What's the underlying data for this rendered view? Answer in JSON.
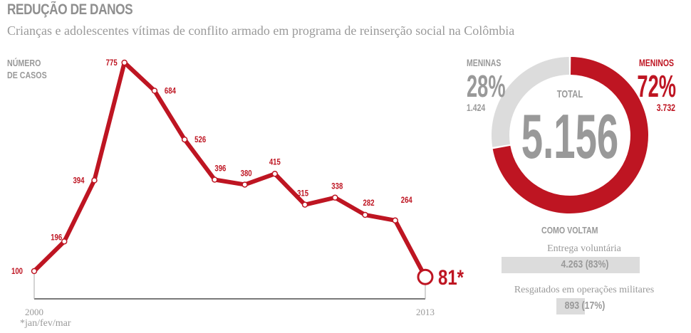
{
  "header": {
    "title": "REDUÇÃO DE DANOS",
    "subtitle": "Crianças e adolescentes vítimas de conflito armado em programa de reinserção social na Colômbia"
  },
  "footnote": "*jan/fev/mar",
  "colors": {
    "accent": "#be1522",
    "gray": "#999999",
    "light_gray": "#dcdcdc",
    "axis": "#7a7a7a"
  },
  "chart_data": [
    {
      "type": "line",
      "title": "",
      "ylabel": "NÚMERO DE CASOS",
      "xlabel": "",
      "x": [
        2000,
        2001,
        2002,
        2003,
        2004,
        2005,
        2006,
        2007,
        2008,
        2009,
        2010,
        2011,
        2012,
        2013
      ],
      "values": [
        100,
        196,
        394,
        775,
        684,
        526,
        396,
        380,
        415,
        315,
        338,
        282,
        264,
        81
      ],
      "data_labels": [
        "100",
        "196",
        "394",
        "775",
        "684",
        "526",
        "396",
        "380",
        "415",
        "315",
        "338",
        "282",
        "264",
        "81*"
      ],
      "x_tick_labels": [
        "2000",
        "2013"
      ],
      "ylim": [
        0,
        775
      ],
      "grid": false,
      "note": "*jan/fev/mar"
    },
    {
      "type": "pie",
      "title": "TOTAL",
      "total_label": "5.156",
      "total": 5156,
      "slices": [
        {
          "name": "MENINOS",
          "value": 3732,
          "value_label": "3.732",
          "percent_label": "72%",
          "percent": 72,
          "color": "#be1522"
        },
        {
          "name": "MENINAS",
          "value": 1424,
          "value_label": "1.424",
          "percent_label": "28%",
          "percent": 28,
          "color": "#dcdcdc"
        }
      ]
    },
    {
      "type": "bar",
      "title": "COMO VOLTAM",
      "categories": [
        "Entrega voluntária",
        "Resgatados em operações militares"
      ],
      "values": [
        4263,
        893
      ],
      "percents": [
        83,
        17
      ],
      "value_labels": [
        "4.263 (83%)",
        "893 (17%)"
      ]
    }
  ]
}
